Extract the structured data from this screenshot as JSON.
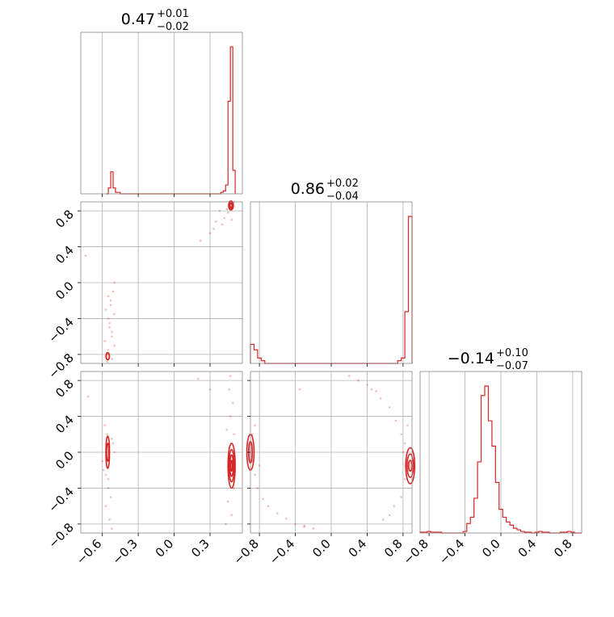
{
  "chart_data": {
    "type": "corner",
    "color": "#d62728",
    "parameters": [
      {
        "title_main": "0.47",
        "title_plus": "+0.01",
        "title_minus": "−0.02",
        "range": [
          -0.78,
          0.57
        ],
        "ticks": [
          -0.6,
          -0.3,
          0.0,
          0.3
        ],
        "tick_labels": [
          "−0.6",
          "−0.3",
          "0.0",
          "0.3"
        ],
        "gridlines": [
          -0.6,
          -0.3,
          0.0,
          0.3
        ]
      },
      {
        "title_main": "0.86",
        "title_plus": "+0.02",
        "title_minus": "−0.04",
        "range": [
          -0.9,
          0.9
        ],
        "ticks": [
          -0.8,
          -0.4,
          0.0,
          0.4,
          0.8
        ],
        "tick_labels": [
          "−0.8",
          "−0.4",
          "0.0",
          "0.4",
          "0.8"
        ],
        "gridlines": [
          -0.8,
          -0.4,
          0.0,
          0.4,
          0.8
        ]
      },
      {
        "title_main": "−0.14",
        "title_plus": "+0.10",
        "title_minus": "−0.07",
        "range": [
          -0.9,
          0.9
        ],
        "ticks": [
          -0.8,
          -0.4,
          0.0,
          0.4,
          0.8
        ],
        "tick_labels": [
          "−0.8",
          "−0.4",
          "0.0",
          "0.4",
          "0.8"
        ],
        "gridlines": [
          -0.8,
          -0.4,
          0.0,
          0.4,
          0.8
        ]
      }
    ],
    "histograms": [
      {
        "param": 0,
        "bins": [
          -0.57,
          -0.55,
          -0.53,
          -0.51,
          -0.49,
          -0.47,
          -0.45,
          -0.43,
          0.37,
          0.39,
          0.41,
          0.43,
          0.45,
          0.47,
          0.49,
          0.51
        ],
        "counts": [
          0.0,
          0.04,
          0.15,
          0.04,
          0.01,
          0.01,
          0.0,
          0.0,
          0.0,
          0.01,
          0.02,
          0.06,
          0.63,
          1.0,
          0.16,
          0.0
        ]
      },
      {
        "param": 1,
        "bins": [
          -0.9,
          -0.86,
          -0.82,
          -0.78,
          -0.74,
          -0.7,
          0.7,
          0.74,
          0.78,
          0.82,
          0.86,
          0.9
        ],
        "counts": [
          0.07,
          0.05,
          0.02,
          0.01,
          0.0,
          0.0,
          0.0,
          0.01,
          0.02,
          0.19,
          0.54,
          0.0
        ]
      },
      {
        "param": 2,
        "bins": [
          -0.9,
          -0.86,
          -0.82,
          -0.78,
          -0.74,
          -0.7,
          -0.66,
          -0.62,
          -0.58,
          -0.54,
          -0.5,
          -0.46,
          -0.42,
          -0.38,
          -0.34,
          -0.3,
          -0.26,
          -0.22,
          -0.18,
          -0.14,
          -0.1,
          -0.06,
          -0.02,
          0.02,
          0.06,
          0.1,
          0.14,
          0.18,
          0.22,
          0.26,
          0.3,
          0.34,
          0.38,
          0.42,
          0.46,
          0.5,
          0.54,
          0.58,
          0.62,
          0.66,
          0.7,
          0.74,
          0.78,
          0.82,
          0.86,
          0.9
        ],
        "counts": [
          0.005,
          0.005,
          0.01,
          0.005,
          0.005,
          0.005,
          0.0,
          0.0,
          0.0,
          0.0,
          0.0,
          0.0,
          0.01,
          0.06,
          0.1,
          0.22,
          0.45,
          0.87,
          0.93,
          0.71,
          0.55,
          0.32,
          0.15,
          0.1,
          0.07,
          0.05,
          0.03,
          0.02,
          0.01,
          0.005,
          0.005,
          0.0,
          0.005,
          0.01,
          0.005,
          0.005,
          0.0,
          0.0,
          0.0,
          0.005,
          0.005,
          0.01,
          0.005,
          0.0,
          0.0,
          0.0
        ]
      }
    ],
    "contour_pairs": [
      {
        "x_param": 0,
        "y_param": 1,
        "modes": [
          {
            "cx": 0.475,
            "cy": 0.86,
            "rx": [
              0.02,
              0.015,
              0.01
            ],
            "ry": [
              0.05,
              0.035,
              0.02
            ]
          },
          {
            "cx": -0.555,
            "cy": -0.82,
            "rx": [
              0.015
            ],
            "ry": [
              0.04
            ]
          }
        ],
        "scatter": [
          [
            -0.56,
            -0.8
          ],
          [
            -0.55,
            -0.75
          ],
          [
            -0.52,
            -0.6
          ],
          [
            -0.54,
            -0.5
          ],
          [
            -0.57,
            -0.3
          ],
          [
            -0.53,
            -0.2
          ],
          [
            -0.51,
            -0.1
          ],
          [
            -0.55,
            -0.4
          ],
          [
            -0.58,
            -0.65
          ],
          [
            -0.5,
            -0.7
          ],
          [
            -0.52,
            -0.85
          ],
          [
            -0.56,
            -0.88
          ],
          [
            -0.54,
            -0.45
          ],
          [
            -0.53,
            -0.25
          ],
          [
            -0.5,
            0.0
          ],
          [
            -0.74,
            0.3
          ],
          [
            0.22,
            0.47
          ],
          [
            0.3,
            0.55
          ],
          [
            0.4,
            0.65
          ],
          [
            0.42,
            0.72
          ],
          [
            0.38,
            0.8
          ],
          [
            0.45,
            0.78
          ],
          [
            0.35,
            0.68
          ],
          [
            0.44,
            0.82
          ],
          [
            0.5,
            0.9
          ],
          [
            0.48,
            0.7
          ],
          [
            0.33,
            0.6
          ],
          [
            -0.55,
            -0.15
          ],
          [
            -0.52,
            -0.55
          ],
          [
            -0.5,
            -0.35
          ]
        ]
      },
      {
        "x_param": 0,
        "y_param": 2,
        "modes": [
          {
            "cx": -0.555,
            "cy": 0.0,
            "rx": [
              0.015,
              0.01
            ],
            "ry": [
              0.18,
              0.1
            ]
          },
          {
            "cx": 0.48,
            "cy": -0.15,
            "rx": [
              0.03,
              0.022,
              0.014,
              0.007
            ],
            "ry": [
              0.25,
              0.18,
              0.12,
              0.06
            ]
          }
        ],
        "scatter": [
          [
            -0.56,
            0.2
          ],
          [
            -0.55,
            -0.3
          ],
          [
            -0.53,
            -0.5
          ],
          [
            -0.57,
            -0.6
          ],
          [
            -0.54,
            -0.75
          ],
          [
            -0.52,
            -0.85
          ],
          [
            -0.58,
            0.3
          ],
          [
            -0.51,
            0.1
          ],
          [
            -0.55,
            -0.4
          ],
          [
            -0.59,
            -0.2
          ],
          [
            0.47,
            0.4
          ],
          [
            0.49,
            0.55
          ],
          [
            0.46,
            0.7
          ],
          [
            0.45,
            -0.55
          ],
          [
            0.48,
            -0.7
          ],
          [
            0.5,
            -0.4
          ],
          [
            0.44,
            0.25
          ],
          [
            0.5,
            0.2
          ],
          [
            0.3,
            0.7
          ],
          [
            0.2,
            0.82
          ],
          [
            0.43,
            -0.8
          ],
          [
            0.47,
            0.85
          ],
          [
            -0.72,
            0.62
          ],
          [
            -0.6,
            -0.1
          ],
          [
            -0.5,
            0.0
          ],
          [
            -0.52,
            0.15
          ],
          [
            -0.57,
            -0.25
          ],
          [
            0.51,
            -0.2
          ],
          [
            0.46,
            0.05
          ]
        ]
      },
      {
        "x_param": 1,
        "y_param": 2,
        "modes": [
          {
            "cx": -0.9,
            "cy": 0.0,
            "rx": [
              0.04,
              0.02
            ],
            "ry": [
              0.2,
              0.12
            ]
          },
          {
            "cx": 0.88,
            "cy": -0.15,
            "rx": [
              0.05,
              0.035,
              0.02
            ],
            "ry": [
              0.2,
              0.13,
              0.06
            ]
          }
        ],
        "scatter": [
          [
            -0.85,
            -0.25
          ],
          [
            -0.82,
            -0.4
          ],
          [
            -0.76,
            -0.52
          ],
          [
            -0.7,
            -0.6
          ],
          [
            -0.6,
            -0.68
          ],
          [
            -0.5,
            -0.74
          ],
          [
            -0.4,
            -0.8
          ],
          [
            -0.3,
            -0.83
          ],
          [
            -0.2,
            -0.85
          ],
          [
            -0.88,
            0.2
          ],
          [
            -0.85,
            0.3
          ],
          [
            -0.8,
            -0.15
          ],
          [
            0.3,
            0.8
          ],
          [
            0.45,
            0.7
          ],
          [
            0.55,
            0.6
          ],
          [
            0.65,
            0.5
          ],
          [
            0.72,
            0.35
          ],
          [
            0.78,
            0.2
          ],
          [
            0.8,
            0.0
          ],
          [
            0.82,
            -0.3
          ],
          [
            0.78,
            -0.5
          ],
          [
            0.7,
            -0.6
          ],
          [
            0.85,
            0.3
          ],
          [
            0.4,
            0.75
          ],
          [
            0.58,
            -0.75
          ],
          [
            0.5,
            0.68
          ],
          [
            -0.35,
            0.7
          ],
          [
            0.65,
            -0.7
          ],
          [
            0.82,
            0.1
          ],
          [
            -0.87,
            -0.1
          ],
          [
            -0.3,
            -0.82
          ],
          [
            0.2,
            0.85
          ]
        ]
      }
    ]
  }
}
